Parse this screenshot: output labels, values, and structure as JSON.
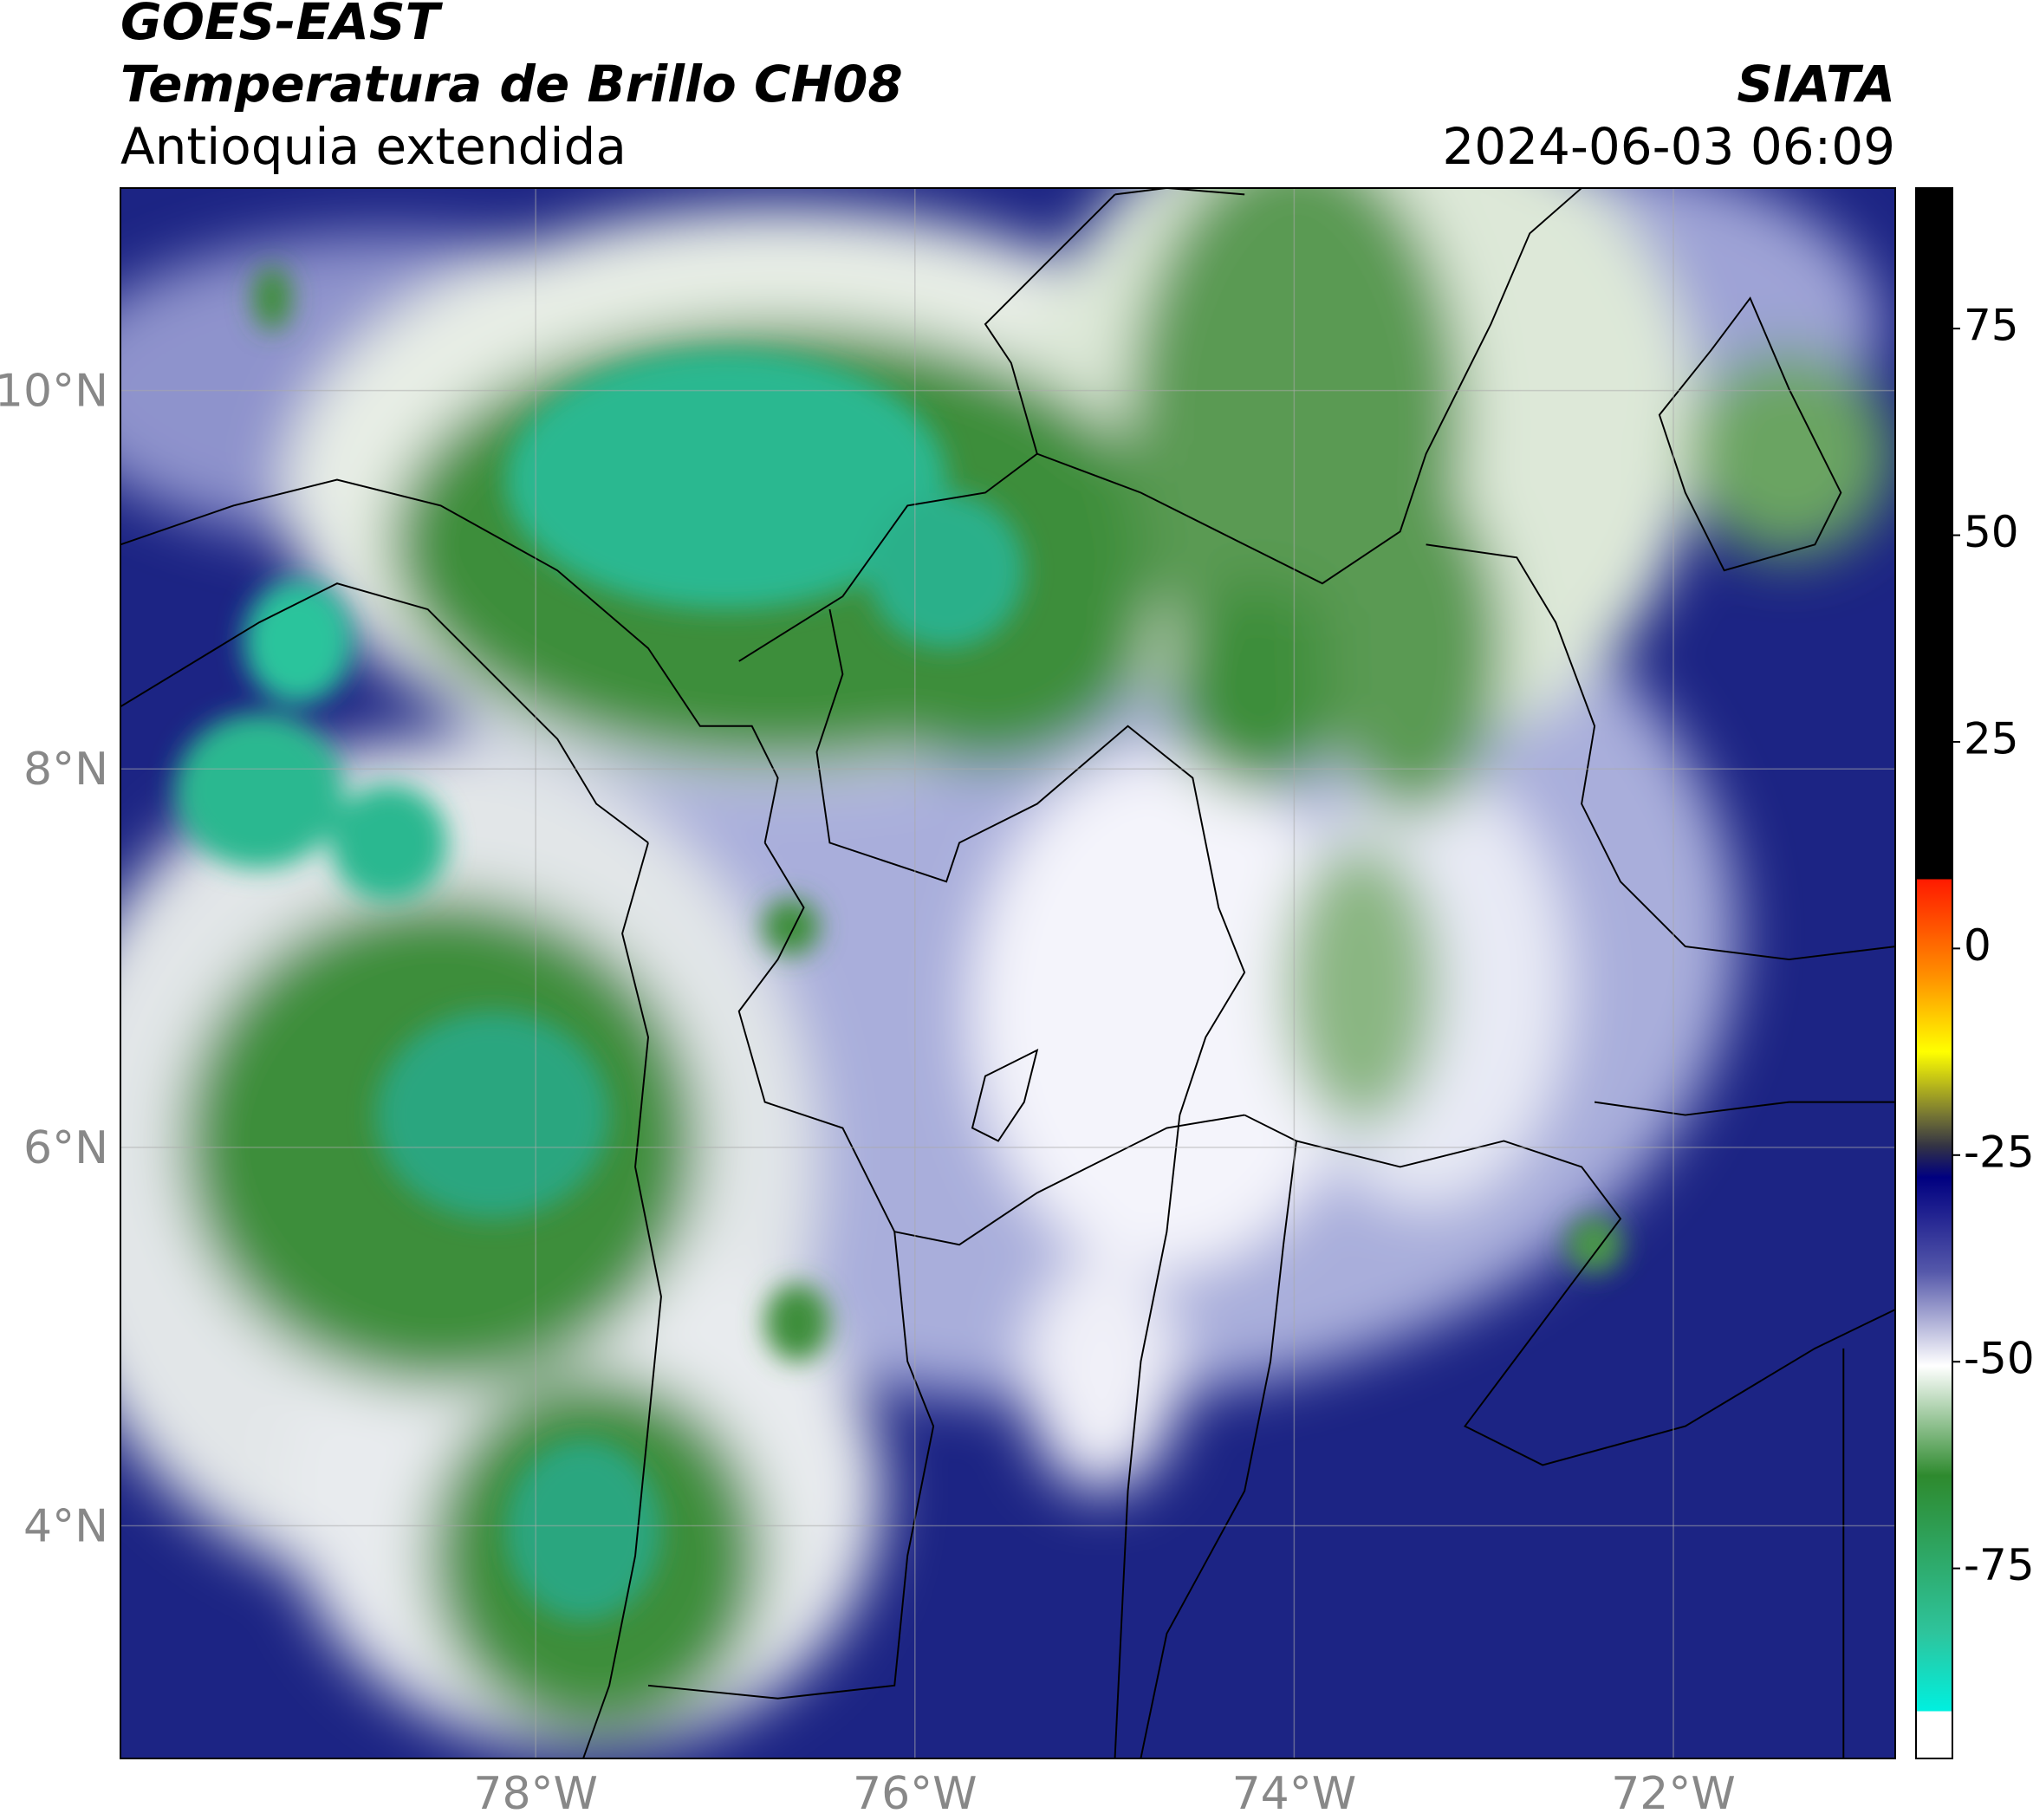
{
  "chart_data": {
    "type": "map",
    "title": "GOES-EAST",
    "subtitle": "Temperatura de Brillo CH08",
    "region": "Antioquia extendida",
    "source": "SIATA",
    "datetime": "2024-06-03 06:09",
    "xlim": [
      -80.19,
      -70.83
    ],
    "ylim": [
      2.77,
      11.07
    ],
    "xticks": [
      {
        "value": -78,
        "label": "78°W"
      },
      {
        "value": -76,
        "label": "76°W"
      },
      {
        "value": -74,
        "label": "74°W"
      },
      {
        "value": -72,
        "label": "72°W"
      }
    ],
    "yticks": [
      {
        "value": 10,
        "label": "10°N"
      },
      {
        "value": 8,
        "label": "8°N"
      },
      {
        "value": 6,
        "label": "6°N"
      },
      {
        "value": 4,
        "label": "4°N"
      }
    ],
    "grid": true,
    "colorbar": {
      "lim": [
        -98,
        92
      ],
      "ticks": [
        75,
        50,
        25,
        0,
        -25,
        -50,
        -75
      ]
    }
  }
}
